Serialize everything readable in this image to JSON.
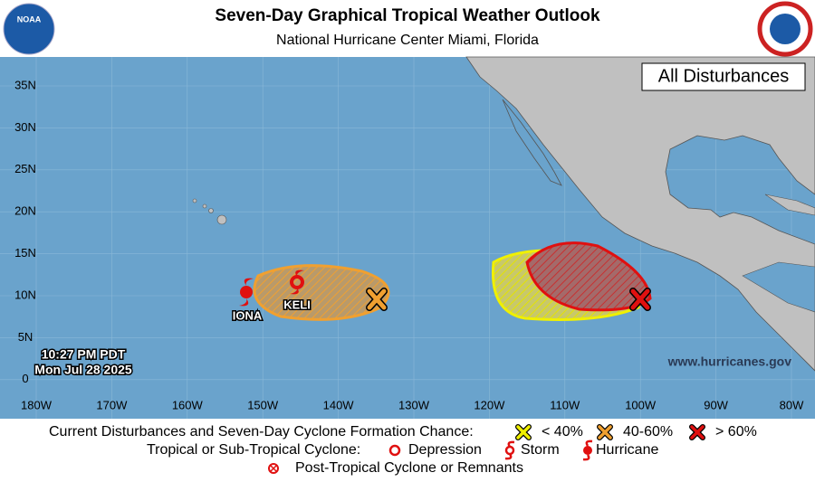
{
  "header": {
    "title": "Seven-Day Graphical Tropical Weather Outlook",
    "subtitle": "National Hurricane Center  Miami, Florida",
    "left_logo": "NOAA"
  },
  "map": {
    "panel_label": "All Disturbances",
    "latitude_labels": [
      "35N",
      "30N",
      "25N",
      "20N",
      "15N",
      "10N",
      "5N",
      "0"
    ],
    "longitude_labels": [
      "180W",
      "170W",
      "160W",
      "150W",
      "140W",
      "130W",
      "120W",
      "110W",
      "100W",
      "90W",
      "80W"
    ],
    "storms": [
      {
        "name": "IONA"
      },
      {
        "name": "KELI"
      }
    ],
    "timestamp": [
      "10:27 PM PDT",
      "Mon Jul 28 2025"
    ],
    "website": "www.hurricanes.gov"
  },
  "legend": {
    "formation_title": "Current Disturbances and Seven-Day Cyclone Formation Chance:",
    "chance_labels": [
      "< 40%",
      "40-60%",
      "> 60%"
    ],
    "cyclone_title": "Tropical or Sub-Tropical Cyclone:",
    "cyclone_labels": [
      "Depression",
      "Storm",
      "Hurricane"
    ],
    "post_tropical": "Post-Tropical Cyclone or Remnants"
  }
}
